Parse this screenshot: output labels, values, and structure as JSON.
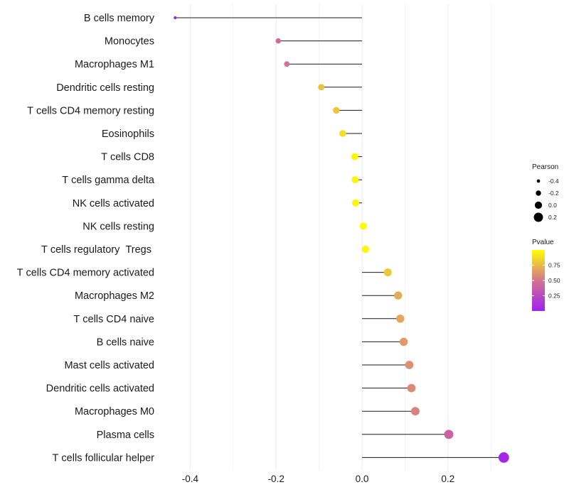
{
  "chart_data": {
    "type": "lollipop",
    "orientation": "horizontal",
    "categories": [
      "B cells memory",
      "Monocytes",
      "Macrophages M1",
      "Dendritic cells resting",
      "T cells CD4 memory resting",
      "Eosinophils",
      "T cells CD8",
      "T cells gamma delta",
      "NK cells activated",
      "NK cells resting",
      "T cells regulatory  Tregs ",
      "T cells CD4 memory activated",
      "Macrophages M2",
      "T cells CD4 naive",
      "B cells naive",
      "Mast cells activated",
      "Dendritic cells activated",
      "Macrophages M0",
      "Plasma cells",
      "T cells follicular helper"
    ],
    "pearson": [
      -0.435,
      -0.195,
      -0.175,
      -0.095,
      -0.06,
      -0.045,
      -0.017,
      -0.016,
      -0.015,
      0.003,
      0.008,
      0.06,
      0.084,
      0.089,
      0.097,
      0.11,
      0.115,
      0.124,
      0.202,
      0.33
    ],
    "pvalue": [
      0.02,
      0.45,
      0.48,
      0.78,
      0.8,
      0.88,
      0.97,
      0.97,
      0.97,
      0.99,
      0.97,
      0.8,
      0.7,
      0.68,
      0.64,
      0.6,
      0.58,
      0.55,
      0.4,
      0.04
    ],
    "xlim": [
      -0.45,
      0.35
    ],
    "x_ticks": [
      -0.4,
      -0.2,
      0.0,
      0.2
    ],
    "x_tick_labels": [
      "-0.4",
      "-0.2",
      "0.0",
      "0.2"
    ],
    "title": "",
    "xlabel": "",
    "ylabel": "",
    "grid": "vertical",
    "legend_size": {
      "title": "Pearson",
      "values": [
        -0.4,
        -0.2,
        0.0,
        0.2
      ],
      "labels": [
        "-0.4",
        "-0.2",
        "0.0",
        "0.2"
      ]
    },
    "legend_color": {
      "title": "Pvalue",
      "ticks": [
        0.25,
        0.5,
        0.75
      ],
      "labels": [
        "0.25",
        "0.50",
        "0.75"
      ],
      "range": [
        0.0,
        1.0
      ],
      "low_color": "#a020f0",
      "mid_color": "#d4748f",
      "high_color": "#ffff00"
    },
    "colors": {
      "stem": "#1a1a1a",
      "grid": "#ebebeb"
    }
  }
}
